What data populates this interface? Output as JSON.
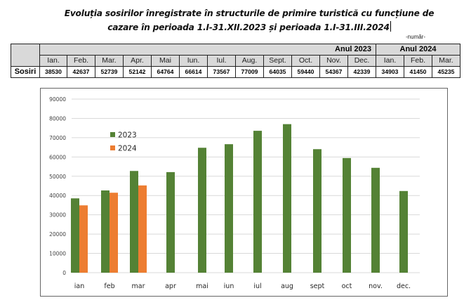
{
  "title": {
    "line1": "Evoluția sosirilor înregistrate în structurile de primire turistică cu funcțiune de",
    "line2": "cazare în perioada 1.I-31.XII.2023 și perioada 1.I-31.III.2024"
  },
  "unit_label": "-număr-",
  "table": {
    "year_headers": [
      "Anul 2023",
      "Anul 2024"
    ],
    "months_2023": [
      "Ian.",
      "Feb.",
      "Mar.",
      "Apr.",
      "Mai",
      "Iun.",
      "Iul.",
      "Aug.",
      "Sept.",
      "Oct.",
      "Nov.",
      "Dec."
    ],
    "months_2024": [
      "Ian.",
      "Feb.",
      "Mar."
    ],
    "row_label": "Sosiri",
    "values_2023": [
      "38530",
      "42637",
      "52739",
      "52142",
      "64764",
      "66614",
      "73567",
      "77009",
      "64035",
      "59440",
      "54367",
      "42339"
    ],
    "values_2024": [
      "34903",
      "41450",
      "45235"
    ]
  },
  "chart_data": {
    "type": "bar",
    "title": "",
    "xlabel": "",
    "ylabel": "",
    "categories": [
      "ian",
      "feb",
      "mar",
      "apr",
      "mai",
      "iun",
      "iul",
      "aug",
      "sept",
      "oct",
      "nov.",
      "dec."
    ],
    "series": [
      {
        "name": "2023",
        "color": "#548235",
        "values": [
          38530,
          42637,
          52739,
          52142,
          64764,
          66614,
          73567,
          77009,
          64035,
          59440,
          54367,
          42339
        ]
      },
      {
        "name": "2024",
        "color": "#ED7D31",
        "values": [
          34903,
          41450,
          45235,
          null,
          null,
          null,
          null,
          null,
          null,
          null,
          null,
          null
        ]
      }
    ],
    "ylim": [
      0,
      90000
    ],
    "yticks": [
      "0",
      "10000",
      "20000",
      "30000",
      "40000",
      "50000",
      "60000",
      "70000",
      "80000",
      "90000"
    ],
    "grid": true,
    "legend_position": "top-left",
    "gridline_color": "#d9d9d9"
  }
}
